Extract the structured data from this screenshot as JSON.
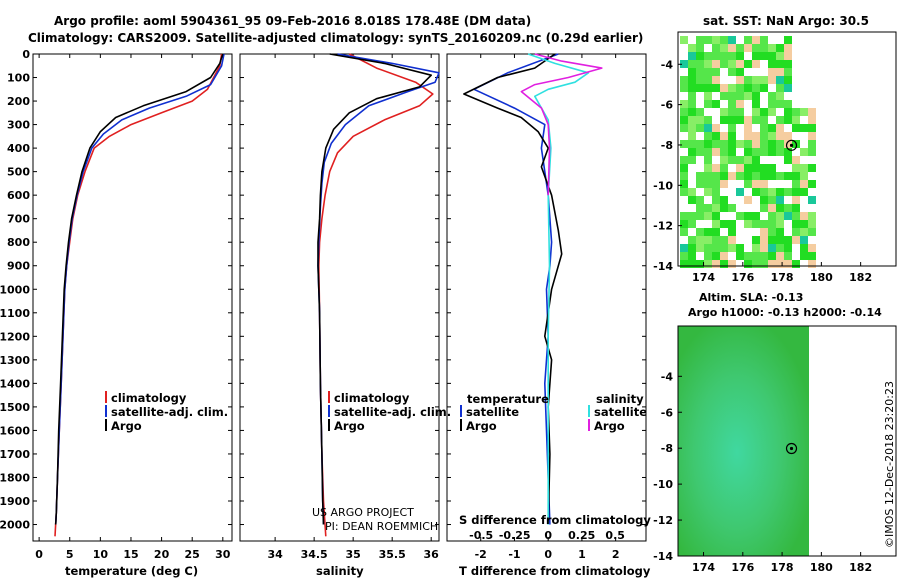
{
  "title": {
    "line1": "Argo profile: aoml 5904361_95 09-Feb-2016 8.018S 178.48E (DM data)",
    "line2": "Climatology: CARS2009. Satellite-adjusted climatology: synTS_20160209.nc (0.29d earlier)"
  },
  "colors": {
    "climatology": "#e02020",
    "satellite": "#1030d0",
    "argo": "#000000",
    "sat_salinity": "#30e0e0",
    "argo_salinity": "#e020e0"
  },
  "depth_axis": {
    "ticks": [
      0,
      100,
      200,
      300,
      400,
      500,
      600,
      700,
      800,
      900,
      1000,
      1100,
      1200,
      1300,
      1400,
      1500,
      1600,
      1700,
      1800,
      1900,
      2000
    ],
    "range": [
      0,
      2070
    ]
  },
  "chart_data": [
    {
      "type": "line",
      "name": "temperature",
      "xlabel": "temperature (deg C)",
      "xlim": [
        -1,
        31.5
      ],
      "xticks": [
        0,
        5,
        10,
        15,
        20,
        25,
        30
      ],
      "ylim": [
        0,
        2070
      ],
      "legend": [
        "climatology",
        "satellite-adj. clim.",
        "Argo"
      ],
      "series": [
        {
          "name": "climatology",
          "color": "#e02020",
          "values": [
            [
              29.8,
              0
            ],
            [
              29.5,
              50
            ],
            [
              27.5,
              150
            ],
            [
              25,
              200
            ],
            [
              20,
              250
            ],
            [
              15,
              300
            ],
            [
              11.5,
              350
            ],
            [
              9,
              400
            ],
            [
              7.5,
              500
            ],
            [
              6.3,
              600
            ],
            [
              5.5,
              700
            ],
            [
              5,
              800
            ],
            [
              4.5,
              900
            ],
            [
              4.2,
              1000
            ],
            [
              3.9,
              1200
            ],
            [
              3.6,
              1400
            ],
            [
              3.3,
              1600
            ],
            [
              3,
              1800
            ],
            [
              2.8,
              1950
            ],
            [
              2.6,
              2050
            ]
          ]
        },
        {
          "name": "satellite-adj. clim.",
          "color": "#1030d0",
          "values": [
            [
              30.2,
              0
            ],
            [
              29.8,
              50
            ],
            [
              28,
              130
            ],
            [
              24,
              180
            ],
            [
              18,
              230
            ],
            [
              13.5,
              280
            ],
            [
              10.5,
              340
            ],
            [
              8.6,
              400
            ],
            [
              7.2,
              500
            ],
            [
              6.2,
              600
            ],
            [
              5.4,
              700
            ],
            [
              4.9,
              800
            ],
            [
              4.5,
              900
            ],
            [
              4.2,
              1000
            ],
            [
              3.9,
              1200
            ],
            [
              3.6,
              1400
            ],
            [
              3.3,
              1600
            ],
            [
              3,
              1800
            ],
            [
              2.8,
              1950
            ],
            [
              2.7,
              2000
            ]
          ]
        },
        {
          "name": "Argo",
          "color": "#000000",
          "values": [
            [
              30,
              0
            ],
            [
              29.5,
              40
            ],
            [
              28,
              100
            ],
            [
              24,
              160
            ],
            [
              17,
              220
            ],
            [
              12.5,
              270
            ],
            [
              10,
              330
            ],
            [
              8.3,
              400
            ],
            [
              7,
              500
            ],
            [
              6.1,
              600
            ],
            [
              5.3,
              700
            ],
            [
              4.8,
              800
            ],
            [
              4.4,
              900
            ],
            [
              4.1,
              1000
            ],
            [
              3.8,
              1200
            ],
            [
              3.5,
              1400
            ],
            [
              3.2,
              1600
            ],
            [
              3,
              1800
            ],
            [
              2.8,
              1950
            ],
            [
              2.7,
              2000
            ]
          ]
        }
      ]
    },
    {
      "type": "line",
      "name": "salinity",
      "xlabel": "salinity",
      "xlim": [
        33.55,
        36.1
      ],
      "xticks": [
        34,
        34.5,
        35,
        35.5,
        36
      ],
      "xtick_labels": [
        "34",
        "34.5",
        "35",
        "35.5",
        "36"
      ],
      "ylim": [
        0,
        2070
      ],
      "legend": [
        "climatology",
        "satellite-adj. clim.",
        "Argo"
      ],
      "series": [
        {
          "name": "climatology",
          "color": "#e02020",
          "values": [
            [
              34.95,
              0
            ],
            [
              35.3,
              60
            ],
            [
              35.8,
              120
            ],
            [
              36.02,
              170
            ],
            [
              35.85,
              220
            ],
            [
              35.4,
              280
            ],
            [
              35,
              350
            ],
            [
              34.8,
              420
            ],
            [
              34.7,
              500
            ],
            [
              34.64,
              600
            ],
            [
              34.6,
              700
            ],
            [
              34.57,
              800
            ],
            [
              34.56,
              900
            ],
            [
              34.57,
              1100
            ],
            [
              34.58,
              1400
            ],
            [
              34.6,
              1700
            ],
            [
              34.62,
              1900
            ],
            [
              34.65,
              2050
            ]
          ]
        },
        {
          "name": "satellite-adj. clim.",
          "color": "#1030d0",
          "values": [
            [
              34.8,
              0
            ],
            [
              35.5,
              40
            ],
            [
              36.1,
              80
            ],
            [
              36.05,
              120
            ],
            [
              35.7,
              160
            ],
            [
              35.2,
              220
            ],
            [
              34.9,
              300
            ],
            [
              34.72,
              380
            ],
            [
              34.63,
              460
            ],
            [
              34.6,
              550
            ],
            [
              34.58,
              650
            ],
            [
              34.56,
              800
            ],
            [
              34.55,
              900
            ],
            [
              34.57,
              1100
            ],
            [
              34.58,
              1400
            ],
            [
              34.6,
              1700
            ],
            [
              34.61,
              1900
            ],
            [
              34.62,
              2000
            ]
          ]
        },
        {
          "name": "Argo",
          "color": "#000000",
          "values": [
            [
              34.7,
              0
            ],
            [
              35.4,
              40
            ],
            [
              36.0,
              90
            ],
            [
              35.85,
              140
            ],
            [
              35.3,
              190
            ],
            [
              34.95,
              250
            ],
            [
              34.75,
              320
            ],
            [
              34.65,
              400
            ],
            [
              34.6,
              500
            ],
            [
              34.58,
              600
            ],
            [
              34.57,
              700
            ],
            [
              34.55,
              800
            ],
            [
              34.55,
              900
            ],
            [
              34.57,
              1100
            ],
            [
              34.58,
              1400
            ],
            [
              34.6,
              1700
            ],
            [
              34.61,
              1900
            ],
            [
              34.62,
              2000
            ]
          ]
        }
      ]
    },
    {
      "type": "line",
      "name": "differences",
      "xlabel": "T difference from climatology",
      "xlim": [
        -3,
        2.9
      ],
      "xticks": [
        -2,
        -1,
        0,
        1,
        2
      ],
      "ylim": [
        0,
        2070
      ],
      "s_axis_label": "S difference from climatology",
      "s_ticks": [
        -0.5,
        -0.25,
        0,
        0.25,
        0.5
      ],
      "s_tick_labels": [
        "-0.5",
        "-0.25",
        "0",
        "0.25",
        "0.5"
      ],
      "legend_temperature_heading": "temperature",
      "legend_salinity_heading": "salinity",
      "legend": [
        "satellite",
        "Argo",
        "satellite",
        "Argo"
      ],
      "series": [
        {
          "name": "T satellite",
          "color": "#1030d0",
          "values": [
            [
              0.3,
              0
            ],
            [
              -1.2,
              80
            ],
            [
              -2.2,
              150
            ],
            [
              -1,
              230
            ],
            [
              -0.1,
              300
            ],
            [
              -0.2,
              400
            ],
            [
              -0.1,
              500
            ],
            [
              0,
              600
            ],
            [
              0.1,
              800
            ],
            [
              0.05,
              900
            ],
            [
              -0.05,
              1000
            ],
            [
              0,
              1200
            ],
            [
              -0.1,
              1400
            ],
            [
              -0.05,
              1600
            ],
            [
              0,
              1800
            ],
            [
              0.05,
              2000
            ]
          ]
        },
        {
          "name": "T Argo",
          "color": "#000000",
          "values": [
            [
              0.2,
              0
            ],
            [
              -0.4,
              60
            ],
            [
              -1.5,
              100
            ],
            [
              -2.5,
              170
            ],
            [
              -1.5,
              230
            ],
            [
              -0.8,
              270
            ],
            [
              -0.3,
              330
            ],
            [
              0,
              400
            ],
            [
              -0.2,
              480
            ],
            [
              0.1,
              600
            ],
            [
              0.3,
              750
            ],
            [
              0.4,
              850
            ],
            [
              0.1,
              1000
            ],
            [
              0,
              1100
            ],
            [
              -0.1,
              1200
            ],
            [
              0.1,
              1300
            ],
            [
              0,
              1500
            ],
            [
              0.05,
              1700
            ],
            [
              0,
              2000
            ]
          ]
        },
        {
          "name": "S satellite",
          "color": "#30e0e0",
          "values": [
            [
              -0.15,
              0
            ],
            [
              0.05,
              40
            ],
            [
              0.3,
              80
            ],
            [
              0.2,
              120
            ],
            [
              0,
              150
            ],
            [
              -0.1,
              180
            ],
            [
              0,
              280
            ],
            [
              0.02,
              400
            ],
            [
              0,
              600
            ],
            [
              0.01,
              900
            ],
            [
              0,
              1200
            ],
            [
              0,
              1600
            ],
            [
              0,
              2000
            ]
          ]
        },
        {
          "name": "S Argo",
          "color": "#e020e0",
          "values": [
            [
              -0.1,
              0
            ],
            [
              0.1,
              30
            ],
            [
              0.4,
              60
            ],
            [
              0.15,
              100
            ],
            [
              -0.1,
              130
            ],
            [
              -0.2,
              160
            ],
            [
              -0.05,
              230
            ],
            [
              0,
              300
            ],
            [
              0.01,
              400
            ],
            [
              0,
              600
            ]
          ]
        }
      ]
    }
  ],
  "map_sst": {
    "title": "sat. SST: NaN Argo: 30.5",
    "xticks": [
      174,
      176,
      178,
      180,
      182
    ],
    "yticks": [
      -4,
      -6,
      -8,
      -10,
      -12,
      -14
    ],
    "xlim": [
      172.7,
      183.8
    ],
    "ylim": [
      -14,
      -2.4
    ],
    "argo_position": [
      178.48,
      -8.018
    ]
  },
  "map_sla": {
    "title": "Altim. SLA: -0.13",
    "subtitle": "Argo h1000: -0.13 h2000: -0.14",
    "xticks": [
      174,
      176,
      178,
      180,
      182
    ],
    "yticks": [
      -4,
      -6,
      -8,
      -10,
      -12,
      -14
    ],
    "xlim": [
      172.7,
      183.8
    ],
    "ylim": [
      -14,
      -1.2
    ],
    "argo_position": [
      178.48,
      -8.018
    ]
  },
  "credits": {
    "project": "US ARGO PROJECT",
    "pi": "PI: DEAN ROEMMICH",
    "footer": "©IMOS 12-Dec-2018 23:20:23"
  }
}
